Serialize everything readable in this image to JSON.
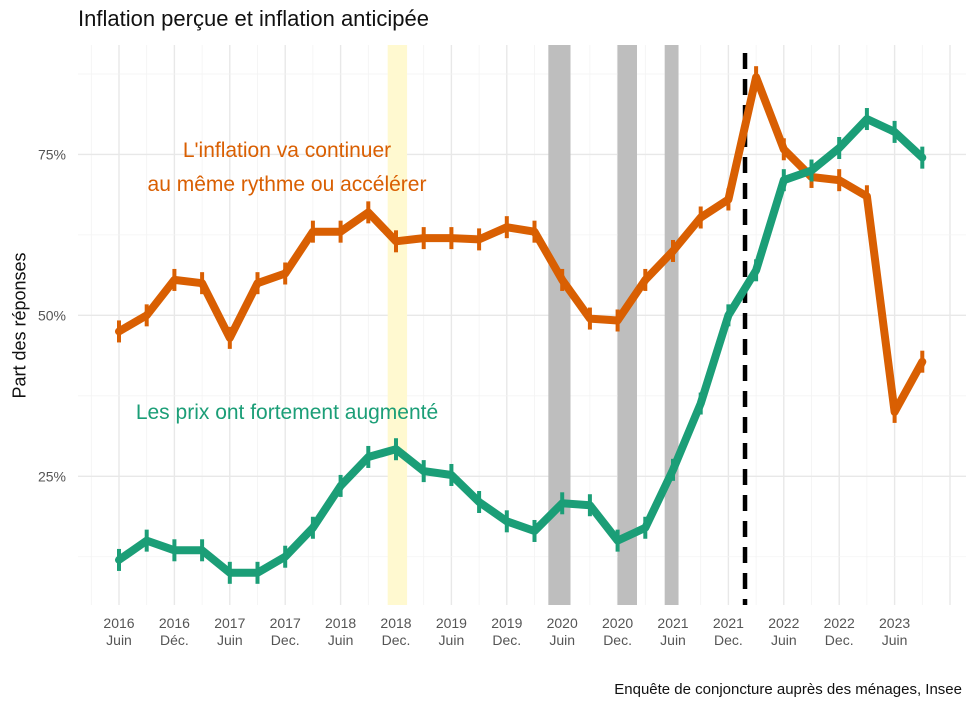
{
  "chart_data": {
    "type": "line",
    "title": "Inflation perçue et inflation anticipée",
    "ylabel": "Part des réponses",
    "xlabel": "",
    "caption": "Enquête de conjoncture auprès des ménages, Insee",
    "ylim": [
      5,
      92
    ],
    "y_ticks": [
      25,
      50,
      75
    ],
    "y_tick_labels": [
      "25%",
      "50%",
      "75%"
    ],
    "x_ticks": [
      {
        "i": 0,
        "top": "2016",
        "bottom": "Juin"
      },
      {
        "i": 2,
        "top": "2016",
        "bottom": "Déc."
      },
      {
        "i": 4,
        "top": "2017",
        "bottom": "Juin"
      },
      {
        "i": 6,
        "top": "2017",
        "bottom": "Dec."
      },
      {
        "i": 8,
        "top": "2018",
        "bottom": "Juin"
      },
      {
        "i": 10,
        "top": "2018",
        "bottom": "Dec."
      },
      {
        "i": 12,
        "top": "2019",
        "bottom": "Juin"
      },
      {
        "i": 14,
        "top": "2019",
        "bottom": "Dec."
      },
      {
        "i": 16,
        "top": "2020",
        "bottom": "Juin"
      },
      {
        "i": 18,
        "top": "2020",
        "bottom": "Dec."
      },
      {
        "i": 20,
        "top": "2021",
        "bottom": "Juin"
      },
      {
        "i": 22,
        "top": "2021",
        "bottom": "Dec."
      },
      {
        "i": 24,
        "top": "2022",
        "bottom": "Juin"
      },
      {
        "i": 26,
        "top": "2022",
        "bottom": "Dec."
      },
      {
        "i": 28,
        "top": "2023",
        "bottom": "Juin"
      }
    ],
    "shaded_periods": [
      {
        "from": 15.5,
        "to": 16.3,
        "color": "#bebebe"
      },
      {
        "from": 18.0,
        "to": 18.7,
        "color": "#bebebe"
      },
      {
        "from": 19.7,
        "to": 20.2,
        "color": "#bebebe"
      },
      {
        "from": 9.7,
        "to": 10.4,
        "color": "#fff9d0"
      }
    ],
    "reference_line_x": 22.6,
    "series": [
      {
        "name": "L'inflation va continuer au même rythme ou accélérer",
        "color": "#d95f02",
        "x": [
          0,
          1,
          2,
          3,
          4,
          5,
          6,
          7,
          8,
          9,
          10,
          11,
          12,
          13,
          14,
          15,
          16,
          17,
          18,
          19,
          20,
          21,
          22,
          23,
          24,
          25,
          26,
          27,
          28,
          29
        ],
        "values": [
          47.5,
          50,
          55.5,
          55,
          46.5,
          55,
          56.5,
          63,
          63,
          66,
          61.5,
          62,
          62,
          61.8,
          63.7,
          63,
          55.5,
          49.5,
          49.2,
          55.5,
          60,
          65.2,
          68,
          87,
          75.8,
          71.5,
          71,
          68.5,
          35,
          42.8
        ]
      },
      {
        "name": "Les prix ont fortement augmenté",
        "color": "#1b9e77",
        "x": [
          0,
          1,
          2,
          3,
          4,
          5,
          6,
          7,
          8,
          9,
          10,
          11,
          12,
          13,
          14,
          15,
          16,
          17,
          18,
          19,
          20,
          21,
          22,
          23,
          24,
          25,
          26,
          27,
          28,
          29
        ],
        "values": [
          12,
          15,
          13.5,
          13.5,
          10,
          10,
          12.5,
          17,
          23.5,
          28,
          29.2,
          25.8,
          25.2,
          21,
          18,
          16.5,
          20.8,
          20.5,
          15,
          17,
          26,
          36.3,
          50,
          57,
          71,
          72.5,
          76,
          80.5,
          78.5,
          74.5
        ]
      }
    ],
    "annotations": [
      {
        "lines": [
          "L'inflation va continuer",
          "au même rythme ou accélérer"
        ],
        "color": "#d95f02"
      },
      {
        "lines": [
          "Les prix ont fortement augmenté"
        ],
        "color": "#1b9e77"
      }
    ]
  }
}
